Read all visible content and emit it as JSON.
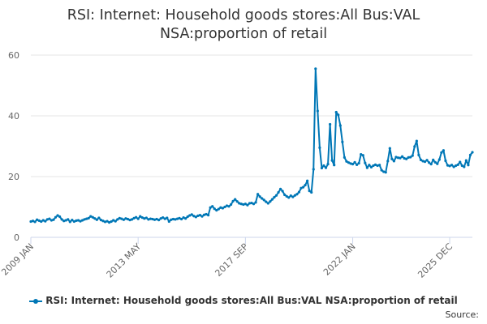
{
  "chart_data": {
    "type": "line",
    "title_line1": "RSI: Internet: Household goods stores:All Bus:VAL",
    "title_line2": "NSA:proportion of retail",
    "xlabel": "",
    "ylabel": "",
    "ylim": [
      0,
      60
    ],
    "yticks": [
      0,
      20,
      40,
      60
    ],
    "xticks": [
      "2009 JAN",
      "2013 MAY",
      "2017 SEP",
      "2022 JAN",
      "2025 DEC"
    ],
    "grid": "horizontal",
    "legend_position": "bottom",
    "series": [
      {
        "name": "RSI: Internet: Household goods stores:All Bus:VAL NSA:proportion of retail",
        "color": "#0077b6",
        "x_start": "2009-01",
        "values": [
          5.2,
          5.4,
          5.1,
          5.8,
          5.5,
          5.2,
          5.6,
          5.3,
          5.9,
          6.1,
          5.6,
          5.8,
          6.6,
          7.2,
          6.8,
          5.9,
          5.4,
          5.6,
          5.9,
          5.1,
          5.7,
          5.2,
          5.5,
          5.6,
          5.3,
          5.6,
          5.9,
          6.1,
          6.3,
          6.9,
          6.6,
          6.2,
          5.8,
          6.4,
          5.7,
          5.4,
          5.1,
          5.3,
          4.9,
          5.2,
          5.6,
          5.3,
          5.9,
          6.3,
          6.1,
          5.8,
          6.2,
          6.0,
          5.7,
          5.9,
          6.3,
          6.6,
          6.1,
          6.9,
          6.5,
          6.2,
          6.4,
          5.9,
          6.1,
          6.0,
          5.8,
          6.0,
          5.7,
          6.2,
          6.5,
          6.1,
          6.4,
          5.2,
          5.8,
          6.0,
          5.9,
          6.1,
          6.3,
          6.0,
          6.5,
          6.2,
          6.8,
          7.2,
          7.5,
          7.0,
          6.7,
          7.1,
          7.3,
          6.9,
          7.4,
          7.6,
          7.3,
          9.8,
          10.2,
          9.4,
          8.9,
          9.3,
          9.8,
          9.6,
          10.0,
          10.4,
          10.2,
          10.8,
          11.9,
          12.5,
          11.8,
          11.2,
          11.0,
          10.8,
          11.0,
          10.6,
          11.2,
          11.3,
          11.0,
          11.5,
          14.2,
          13.4,
          12.8,
          12.3,
          11.7,
          11.2,
          11.8,
          12.5,
          13.2,
          13.8,
          14.8,
          15.9,
          15.2,
          14.0,
          13.5,
          13.1,
          13.7,
          13.3,
          13.8,
          14.2,
          14.9,
          16.2,
          16.5,
          17.2,
          18.6,
          15.3,
          14.8,
          22.4,
          55.5,
          41.6,
          29.5,
          22.8,
          23.6,
          22.9,
          24.1,
          37.2,
          25.3,
          23.8,
          41.2,
          40.3,
          36.8,
          31.4,
          26.3,
          25.0,
          24.6,
          24.3,
          24.1,
          24.7,
          23.9,
          24.4,
          27.3,
          27.0,
          24.5,
          22.9,
          23.8,
          23.1,
          23.6,
          23.9,
          23.6,
          23.8,
          22.1,
          21.6,
          21.4,
          25.1,
          29.3,
          25.8,
          25.1,
          26.4,
          26.2,
          26.1,
          26.6,
          26.0,
          25.8,
          26.3,
          26.4,
          26.9,
          29.9,
          31.7,
          27.1,
          25.5,
          25.1,
          24.9,
          25.4,
          24.6,
          24.1,
          25.5,
          24.7,
          24.2,
          25.6,
          27.9,
          28.6,
          25.2,
          23.7,
          23.5,
          23.8,
          23.2,
          23.6,
          23.9,
          24.8,
          23.6,
          23.2,
          25.3,
          23.8,
          27.1,
          28.0
        ]
      }
    ]
  },
  "source_label": "Source:"
}
